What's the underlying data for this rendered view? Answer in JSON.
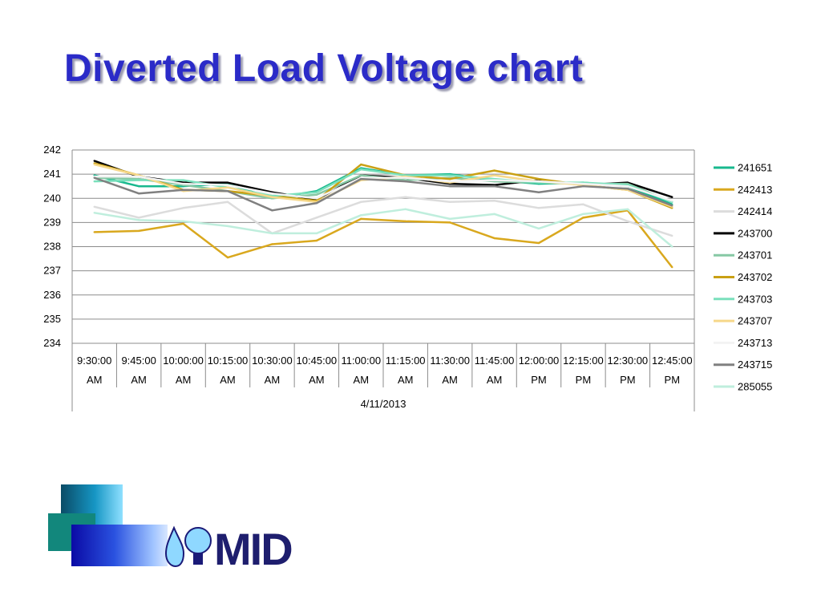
{
  "slide": {
    "title": "Diverted Load Voltage chart"
  },
  "logo": {
    "text": "MID"
  },
  "colors": {
    "title": "#2b2bc8",
    "gridline": "#888888"
  },
  "chart_data": {
    "type": "line",
    "ylim": [
      234,
      242
    ],
    "yticks": [
      234,
      235,
      236,
      237,
      238,
      239,
      240,
      241,
      242
    ],
    "categories": [
      [
        "9:30:00",
        "AM"
      ],
      [
        "9:45:00",
        "AM"
      ],
      [
        "10:00:00",
        "AM"
      ],
      [
        "10:15:00",
        "AM"
      ],
      [
        "10:30:00",
        "AM"
      ],
      [
        "10:45:00",
        "AM"
      ],
      [
        "11:00:00",
        "AM"
      ],
      [
        "11:15:00",
        "AM"
      ],
      [
        "11:30:00",
        "AM"
      ],
      [
        "11:45:00",
        "AM"
      ],
      [
        "12:00:00",
        "PM"
      ],
      [
        "12:15:00",
        "PM"
      ],
      [
        "12:30:00",
        "PM"
      ],
      [
        "12:45:00",
        "PM"
      ]
    ],
    "group_label": "4/11/2013",
    "grid": true,
    "legend_position": "right",
    "series": [
      {
        "name": "241651",
        "color": "#18b88e",
        "values": [
          240.95,
          240.5,
          240.5,
          240.6,
          240.0,
          240.3,
          241.25,
          240.95,
          241.0,
          240.75,
          240.6,
          240.65,
          240.5,
          239.75
        ]
      },
      {
        "name": "242413",
        "color": "#d9a81e",
        "values": [
          238.6,
          238.65,
          238.95,
          237.55,
          238.1,
          238.25,
          239.15,
          239.05,
          239.0,
          238.35,
          238.15,
          239.2,
          239.5,
          237.15
        ]
      },
      {
        "name": "242414",
        "color": "#dcdcdc",
        "values": [
          239.65,
          239.2,
          239.6,
          239.85,
          238.55,
          239.2,
          239.85,
          240.05,
          239.85,
          239.9,
          239.6,
          239.75,
          239.05,
          238.45
        ]
      },
      {
        "name": "243700",
        "color": "#000000",
        "values": [
          241.55,
          240.9,
          240.65,
          240.65,
          240.25,
          239.95,
          240.95,
          240.85,
          240.6,
          240.55,
          240.75,
          240.55,
          240.65,
          240.05
        ]
      },
      {
        "name": "243701",
        "color": "#86c8a4",
        "values": [
          240.85,
          240.8,
          240.55,
          240.3,
          240.0,
          240.15,
          240.95,
          240.75,
          240.85,
          240.7,
          240.65,
          240.6,
          240.6,
          239.85
        ]
      },
      {
        "name": "243702",
        "color": "#c9a014",
        "values": [
          241.45,
          240.95,
          240.35,
          240.3,
          240.1,
          239.9,
          241.4,
          240.95,
          240.8,
          241.15,
          240.8,
          240.55,
          240.35,
          239.6
        ]
      },
      {
        "name": "243703",
        "color": "#7ae0bc",
        "values": [
          240.7,
          240.75,
          240.75,
          240.45,
          240.1,
          240.25,
          241.2,
          240.95,
          240.95,
          240.8,
          240.65,
          240.65,
          240.55,
          239.85
        ]
      },
      {
        "name": "243707",
        "color": "#f6d88a",
        "values": [
          241.4,
          240.95,
          240.3,
          240.45,
          240.05,
          239.85,
          240.75,
          240.9,
          240.65,
          240.95,
          240.7,
          240.55,
          240.35,
          239.65
        ]
      },
      {
        "name": "243713",
        "color": "#f3f3f3",
        "values": [
          240.9,
          240.9,
          240.6,
          240.55,
          240.2,
          240.0,
          240.85,
          240.85,
          240.7,
          240.75,
          240.7,
          240.6,
          240.5,
          239.9
        ]
      },
      {
        "name": "243715",
        "color": "#808080",
        "values": [
          240.85,
          240.2,
          240.35,
          240.3,
          239.5,
          239.8,
          240.8,
          240.7,
          240.5,
          240.5,
          240.25,
          240.5,
          240.4,
          239.7
        ]
      },
      {
        "name": "285055",
        "color": "#bfeedd",
        "values": [
          239.4,
          239.1,
          239.05,
          238.85,
          238.55,
          238.55,
          239.3,
          239.55,
          239.15,
          239.35,
          238.75,
          239.35,
          239.55,
          238.0
        ]
      }
    ]
  }
}
